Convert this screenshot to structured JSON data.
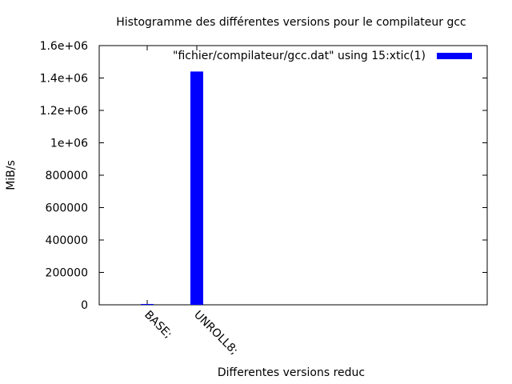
{
  "chart_data": {
    "type": "bar",
    "title": "Histogramme des différentes versions pour le compilateur gcc",
    "xlabel": "Differentes versions reduc",
    "ylabel": "MiB/s",
    "ylim": [
      0,
      1600000
    ],
    "yticks": [
      "0",
      "200000",
      "400000",
      "600000",
      "800000",
      "1e+06",
      "1.2e+06",
      "1.4e+06",
      "1.6e+06"
    ],
    "categories": [
      "BASE;",
      "UNROLL8;"
    ],
    "series": [
      {
        "name": "\"fichier/compilateur/gcc.dat\"  using 15:xtic(1)",
        "values": [
          5000,
          1440000
        ]
      }
    ],
    "legend_position": "top-right",
    "bar_color": "#0000ff",
    "grid": false
  }
}
